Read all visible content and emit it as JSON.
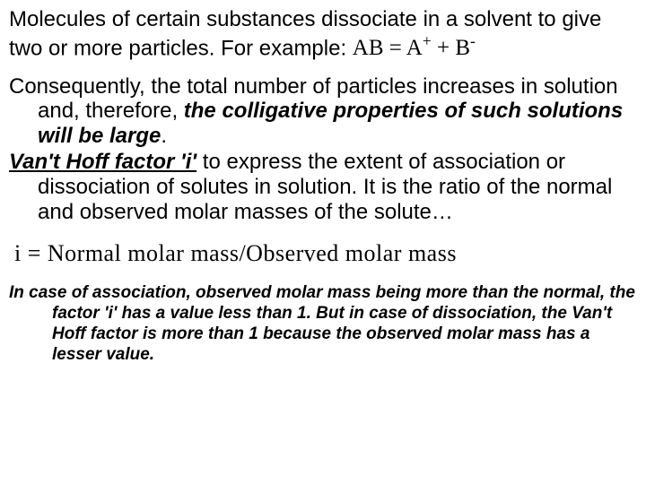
{
  "page": {
    "background_color": "#ffffff",
    "text_color": "#000000",
    "base_fontsize_pt": 18,
    "formula_font_family": "Times New Roman"
  },
  "intro": {
    "text_prefix": "Molecules of certain substances dissociate in a solvent to give two or more particles. For example: ",
    "equation_lhs": "AB",
    "equation_eq": " = ",
    "equation_rhs_a": "A",
    "equation_rhs_a_sup": "+",
    "equation_plus": " + ",
    "equation_rhs_b": "B",
    "equation_rhs_b_sup": "-"
  },
  "p2": {
    "part1": "Consequently, the total number of particles increases in solution and, therefore, ",
    "bold1": "the colligative properties of such solutions will be large",
    "part1_end": "."
  },
  "p3": {
    "term": "Van't Hoff factor 'i'",
    "rest": " to express the extent of association or dissociation of solutes in solution. It is the ratio of the normal and observed molar masses of the solute…"
  },
  "formula": {
    "text": "i = Normal molar mass/Observed molar mass"
  },
  "footnote": {
    "text": "In case of association, observed molar mass being more than the normal, the factor 'i' has a value less than 1. But in case of dissociation, the Van't Hoff factor is more than 1 because the observed molar mass has a lesser value."
  }
}
